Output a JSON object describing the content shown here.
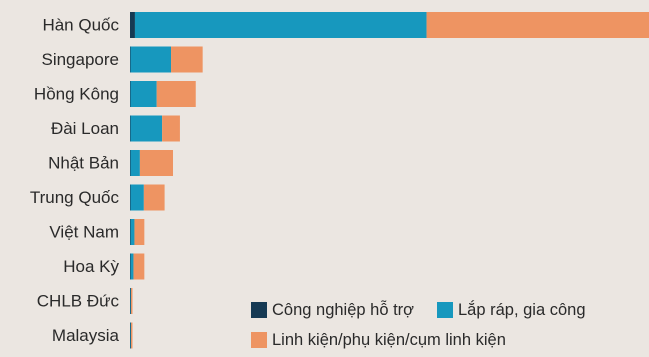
{
  "chart_data": {
    "type": "bar",
    "orientation": "horizontal",
    "stacked": true,
    "categories": [
      "Hàn Quốc",
      "Singapore",
      "Hồng Kông",
      "Đài Loan",
      "Nhật Bản",
      "Trung Quốc",
      "Việt Nam",
      "Hoa Kỳ",
      "CHLB Đức",
      "Malaysia"
    ],
    "series": [
      {
        "name": "Công nghiệp hỗ trợ",
        "color": "#163a54",
        "values": [
          1.0,
          0.1,
          0.1,
          0.1,
          0.1,
          0.1,
          0.1,
          0.1,
          0.1,
          0.1
        ]
      },
      {
        "name": "Lắp ráp, gia công",
        "color": "#1798be",
        "values": [
          59.0,
          8.2,
          5.3,
          6.4,
          1.9,
          2.7,
          0.8,
          0.6,
          0.1,
          0.1
        ]
      },
      {
        "name": "Linh kiện/phụ kiện/cụm linh kiện",
        "color": "#ee9462",
        "values": [
          45.0,
          6.4,
          7.9,
          3.6,
          6.7,
          4.2,
          2.0,
          2.2,
          0.3,
          0.3
        ]
      }
    ],
    "xlim": [
      0,
      105
    ],
    "grid": false,
    "show_x_axis": false,
    "legend_position": "bottom-right"
  }
}
